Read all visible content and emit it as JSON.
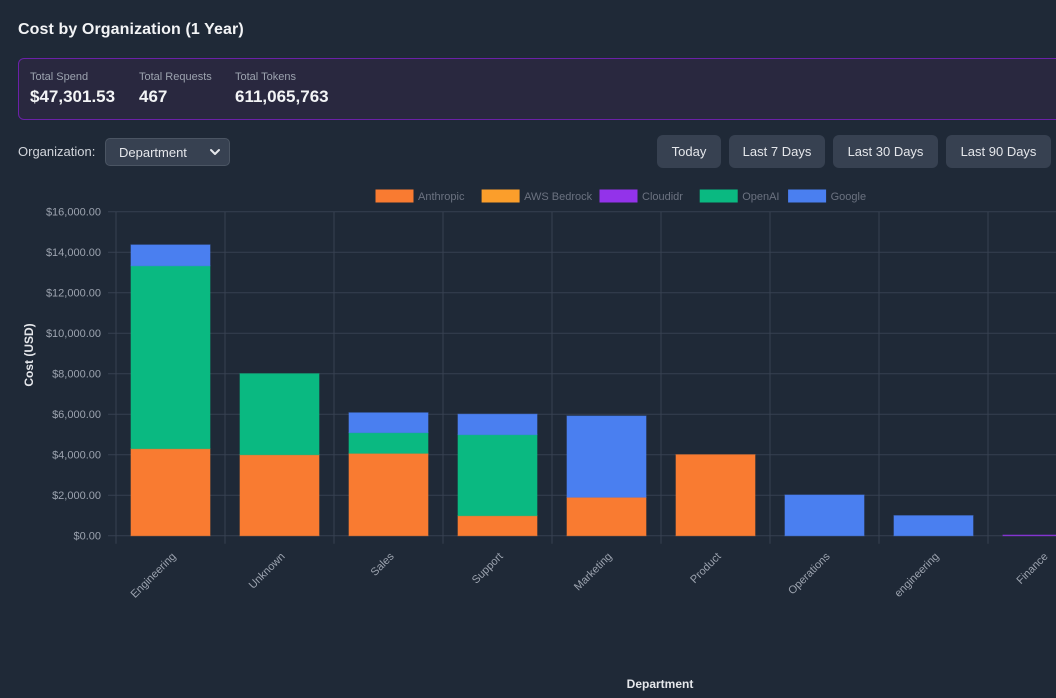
{
  "page": {
    "title": "Cost by Organization (1 Year)"
  },
  "summary": {
    "stats": [
      {
        "label": "Total Spend",
        "value": "$47,301.53"
      },
      {
        "label": "Total Requests",
        "value": "467"
      },
      {
        "label": "Total Tokens",
        "value": "611,065,763"
      }
    ]
  },
  "controls": {
    "organization_label": "Organization:",
    "organization_selected": "Department",
    "range_buttons": [
      "Today",
      "Last 7 Days",
      "Last 30 Days",
      "Last 90 Days"
    ]
  },
  "colors": {
    "Anthropic": "#f97b31",
    "AWS Bedrock": "#fb9e2b",
    "Cloudidr": "#9333ea",
    "OpenAI": "#0ab981",
    "Google": "#4a7ff0",
    "panel_border": "#6b21a8"
  },
  "chart_data": {
    "type": "bar",
    "stacked": true,
    "title": "",
    "xlabel": "Department",
    "ylabel": "Cost (USD)",
    "ylim": [
      0,
      16000
    ],
    "yticks": [
      0,
      2000,
      4000,
      6000,
      8000,
      10000,
      12000,
      14000,
      16000
    ],
    "ytick_labels": [
      "$0.00",
      "$2,000.00",
      "$4,000.00",
      "$6,000.00",
      "$8,000.00",
      "$10,000.00",
      "$12,000.00",
      "$14,000.00",
      "$16,000.00"
    ],
    "grid": true,
    "legend_position": "top",
    "categories": [
      "Engineering",
      "Unknown",
      "Sales",
      "Support",
      "Marketing",
      "Product",
      "Operations",
      "engineering",
      "Finance"
    ],
    "series": [
      {
        "name": "Anthropic",
        "values": [
          4300,
          4000,
          4070,
          990,
          1900,
          4000,
          0,
          0,
          0
        ]
      },
      {
        "name": "AWS Bedrock",
        "values": [
          0,
          0,
          0,
          0,
          0,
          0,
          0,
          0,
          0
        ]
      },
      {
        "name": "Cloudidr",
        "values": [
          0,
          0,
          0,
          0,
          0,
          0,
          0,
          0,
          2
        ]
      },
      {
        "name": "OpenAI",
        "values": [
          9030,
          4000,
          1020,
          4000,
          0,
          0,
          0,
          0,
          0
        ]
      },
      {
        "name": "Google",
        "values": [
          1030,
          0,
          980,
          1010,
          4010,
          0,
          2010,
          990,
          0
        ]
      }
    ]
  }
}
